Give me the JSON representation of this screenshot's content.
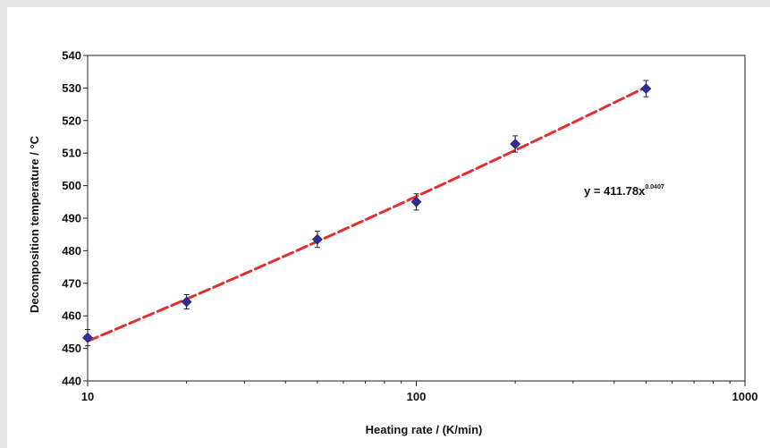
{
  "chart_data": {
    "type": "scatter",
    "x_scale": "log",
    "xlabel": "Heating rate / (K/min)",
    "ylabel": "Decomposition temperature / °C",
    "xlim": [
      10,
      1000
    ],
    "ylim": [
      440,
      540
    ],
    "x_ticks": [
      "10",
      "100",
      "1000"
    ],
    "y_ticks": [
      "440",
      "450",
      "460",
      "470",
      "480",
      "490",
      "500",
      "510",
      "520",
      "530",
      "540"
    ],
    "grid": false,
    "series": [
      {
        "marker": "diamond",
        "color": "#2e2f96",
        "points": [
          {
            "x": 10,
            "y": 453.3,
            "err": 2.5
          },
          {
            "x": 20,
            "y": 464.3,
            "err": 2.2
          },
          {
            "x": 50,
            "y": 483.5,
            "err": 2.5
          },
          {
            "x": 100,
            "y": 495.0,
            "err": 2.5
          },
          {
            "x": 200,
            "y": 512.8,
            "err": 2.5
          },
          {
            "x": 500,
            "y": 529.8,
            "err": 2.5
          }
        ]
      }
    ],
    "trendline": {
      "type": "power",
      "a": 411.78,
      "b": 0.0407,
      "x_range": [
        10,
        500
      ],
      "color": "#e03030",
      "style": "dashed",
      "equation": {
        "prefix": "y = 411.78x",
        "exponent": "0.0407"
      }
    }
  }
}
